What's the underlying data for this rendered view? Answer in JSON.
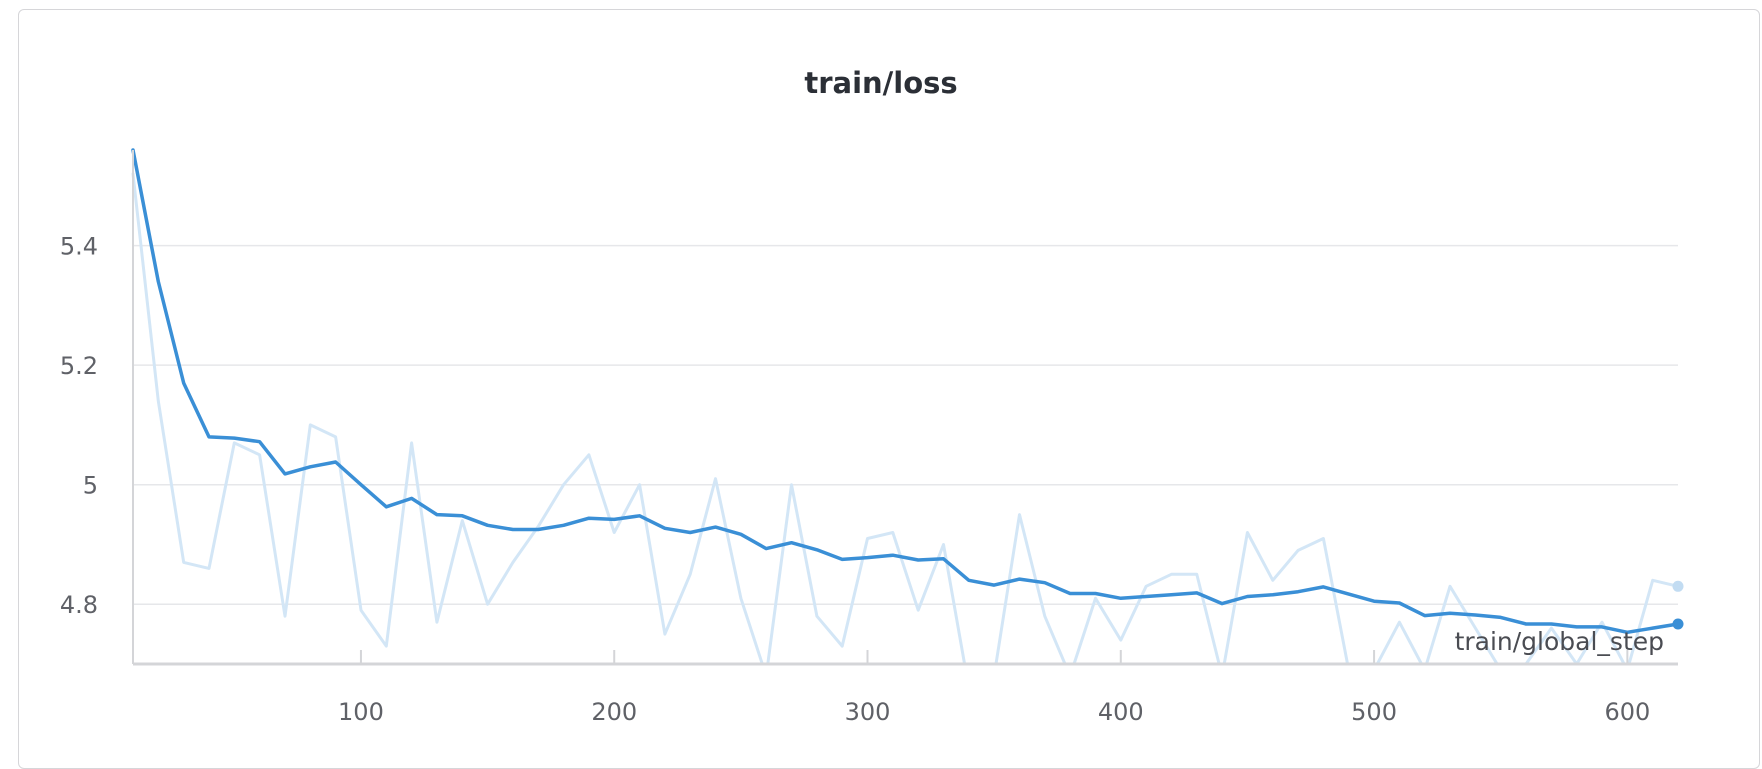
{
  "chart_data": {
    "type": "line",
    "title": "train/loss",
    "xlabel": "train/global_step",
    "ylabel": "",
    "xlim": [
      10,
      620
    ],
    "ylim": [
      4.7,
      5.56
    ],
    "x_ticks": [
      100,
      200,
      300,
      400,
      500,
      600
    ],
    "y_ticks": [
      4.8,
      5,
      5.2,
      5.4
    ],
    "y_tick_labels": [
      "4.8",
      "5",
      "5.2",
      "5.4"
    ],
    "grid": true,
    "colors": {
      "smoothed": "#3a8fd6",
      "raw": "#d3e6f6",
      "grid": "#e6e7ea",
      "axis": "#d4d5d8"
    },
    "series": [
      {
        "role": "raw",
        "x": [
          10,
          20,
          30,
          40,
          50,
          60,
          70,
          80,
          90,
          100,
          110,
          120,
          130,
          140,
          150,
          160,
          170,
          180,
          190,
          200,
          210,
          220,
          230,
          240,
          250,
          260,
          270,
          280,
          290,
          300,
          310,
          320,
          330,
          340,
          350,
          360,
          370,
          380,
          390,
          400,
          410,
          420,
          430,
          440,
          450,
          460,
          470,
          480,
          490,
          500,
          510,
          520,
          530,
          540,
          550,
          560,
          570,
          580,
          590,
          600,
          610,
          620
        ],
        "values": [
          5.52,
          5.14,
          4.87,
          4.86,
          5.07,
          5.05,
          4.78,
          5.1,
          5.08,
          4.79,
          4.73,
          5.07,
          4.77,
          4.94,
          4.8,
          4.87,
          4.93,
          5.0,
          5.05,
          4.92,
          5.0,
          4.75,
          4.85,
          5.01,
          4.81,
          4.68,
          5.0,
          4.78,
          4.73,
          4.91,
          4.92,
          4.79,
          4.9,
          4.66,
          4.68,
          4.95,
          4.78,
          4.68,
          4.81,
          4.74,
          4.83,
          4.85,
          4.85,
          4.68,
          4.92,
          4.84,
          4.89,
          4.91,
          4.69,
          4.69,
          4.77,
          4.69,
          4.83,
          4.76,
          4.69,
          4.7,
          4.76,
          4.7,
          4.77,
          4.69,
          4.84,
          4.83
        ]
      },
      {
        "role": "smoothed",
        "x": [
          10,
          20,
          30,
          40,
          50,
          60,
          70,
          80,
          90,
          100,
          110,
          120,
          130,
          140,
          150,
          160,
          170,
          180,
          190,
          200,
          210,
          220,
          230,
          240,
          250,
          260,
          270,
          280,
          290,
          300,
          310,
          320,
          330,
          340,
          350,
          360,
          370,
          380,
          390,
          400,
          410,
          420,
          430,
          440,
          450,
          460,
          470,
          480,
          490,
          500,
          510,
          520,
          530,
          540,
          550,
          560,
          570,
          580,
          590,
          600,
          610,
          620
        ],
        "values": [
          5.56,
          5.34,
          5.17,
          5.08,
          5.078,
          5.072,
          5.018,
          5.03,
          5.038,
          5.0,
          4.963,
          4.977,
          4.95,
          4.948,
          4.932,
          4.925,
          4.925,
          4.932,
          4.944,
          4.942,
          4.948,
          4.927,
          4.92,
          4.929,
          4.917,
          4.893,
          4.903,
          4.891,
          4.875,
          4.878,
          4.882,
          4.874,
          4.876,
          4.84,
          4.832,
          4.842,
          4.836,
          4.818,
          4.818,
          4.81,
          4.813,
          4.816,
          4.819,
          4.801,
          4.813,
          4.816,
          4.821,
          4.829,
          4.817,
          4.805,
          4.802,
          4.781,
          4.785,
          4.782,
          4.778,
          4.767,
          4.767,
          4.762,
          4.762,
          4.753,
          4.76,
          4.767
        ]
      }
    ]
  }
}
